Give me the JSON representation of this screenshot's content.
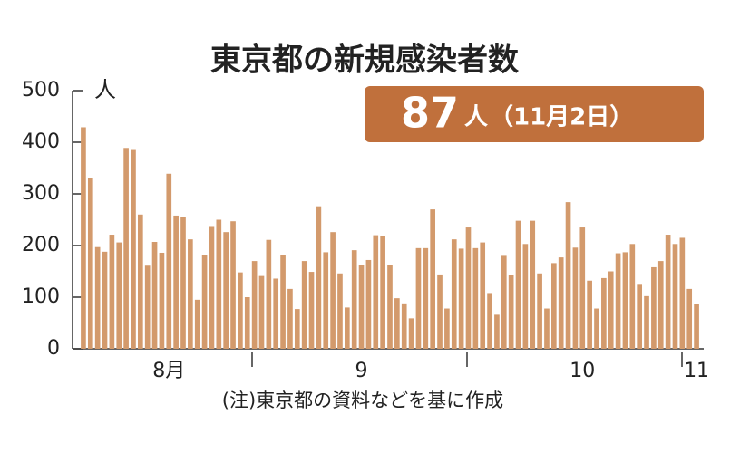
{
  "chart_data": {
    "type": "bar",
    "title": "東京都の新規感染者数",
    "y_unit": "人",
    "callout": {
      "value": 87,
      "unit": "人",
      "date": "（11月2日）"
    },
    "note": "(注)東京都の資料などを基に作成",
    "color": "#d39a6c",
    "ylim": [
      0,
      500
    ],
    "yticks": [
      0,
      100,
      200,
      300,
      400,
      500
    ],
    "categories": [
      null,
      null,
      null,
      null,
      null,
      null,
      null,
      null,
      null,
      null,
      null,
      null,
      "8月",
      null,
      null,
      null,
      null,
      null,
      null,
      null,
      null,
      null,
      null,
      null,
      null,
      null,
      null,
      null,
      null,
      null,
      null,
      null,
      null,
      null,
      null,
      null,
      null,
      null,
      null,
      "9",
      null,
      null,
      null,
      null,
      null,
      null,
      null,
      null,
      null,
      null,
      null,
      null,
      null,
      null,
      null,
      null,
      null,
      null,
      null,
      null,
      null,
      null,
      null,
      null,
      null,
      null,
      null,
      null,
      null,
      null,
      "10",
      null,
      null,
      null,
      null,
      null,
      null,
      null,
      null,
      null,
      null,
      null,
      null,
      null,
      null,
      null,
      "11"
    ],
    "values": [
      429,
      331,
      197,
      188,
      221,
      206,
      389,
      385,
      260,
      161,
      207,
      186,
      339,
      258,
      256,
      212,
      95,
      182,
      236,
      250,
      226,
      247,
      148,
      100,
      170,
      141,
      211,
      136,
      181,
      116,
      77,
      170,
      149,
      276,
      187,
      226,
      146,
      80,
      191,
      163,
      172,
      220,
      218,
      162,
      98,
      88,
      59,
      195,
      195,
      270,
      144,
      78,
      212,
      194,
      235,
      195,
      206,
      108,
      66,
      180,
      143,
      248,
      203,
      248,
      146,
      78,
      166,
      177,
      284,
      196,
      235,
      132,
      78,
      137,
      150,
      185,
      187,
      203,
      124,
      102,
      158,
      170,
      221,
      203,
      215,
      116,
      87
    ]
  }
}
